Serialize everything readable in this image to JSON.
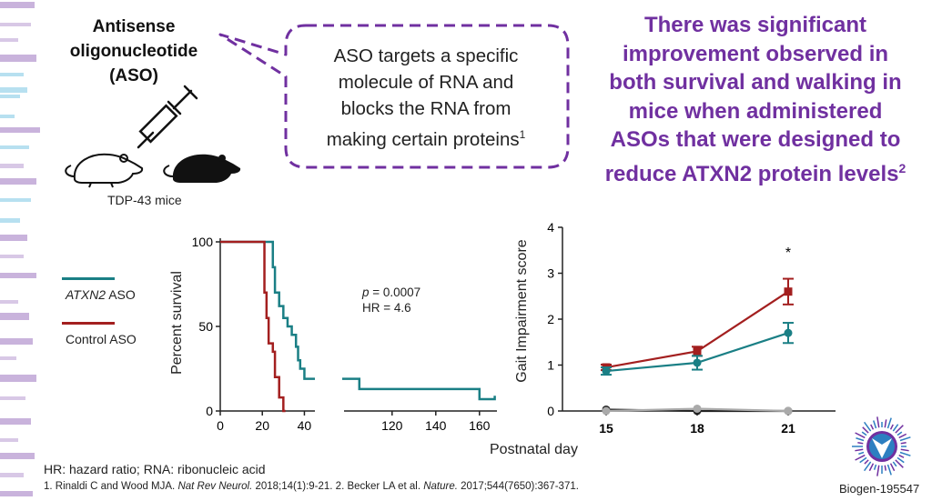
{
  "aso": {
    "title_line1": "Antisense",
    "title_line2": "oligonucleotide",
    "title_line3": "(ASO)",
    "mice_label": "TDP-43 mice"
  },
  "bubble": {
    "line1": "ASO targets a specific",
    "line2": "molecule of RNA and",
    "line3": "blocks the RNA from",
    "line4": "making certain proteins",
    "sup": "1"
  },
  "headline": {
    "line1": "There was significant",
    "line2": "improvement observed in",
    "line3": "both survival and walking in",
    "line4": "mice when administered",
    "line5": "ASOs that were designed to",
    "line6": "reduce ATXN2 protein levels",
    "sup": "2"
  },
  "legend": [
    {
      "label_em": "ATXN2",
      "label": " ASO",
      "color": "#1a7f85"
    },
    {
      "label_em": "",
      "label": "Control ASO",
      "color": "#a31f1f"
    }
  ],
  "stats": {
    "p_label": "p",
    "p_text": " = 0.0007",
    "hr_text": "HR = 4.6"
  },
  "shared_xlabel": "Postnatal day",
  "colors": {
    "accent": "#7030a0",
    "teal": "#1a7f85",
    "red": "#a31f1f",
    "bubble_border": "#7030a0"
  },
  "chart_data": [
    {
      "type": "line",
      "step": true,
      "ylabel": "Percent survival",
      "xlabel": "Postnatal day",
      "ylim": [
        0,
        100
      ],
      "yticks": [
        0,
        50,
        100
      ],
      "xticks_left": [
        0,
        20,
        40
      ],
      "xticks_right": [
        120,
        140,
        160
      ],
      "axis_break": true,
      "series": [
        {
          "name": "ATXN2 ASO",
          "color": "#1a7f85",
          "points": [
            [
              0,
              100
            ],
            [
              25,
              100
            ],
            [
              25,
              85
            ],
            [
              26,
              85
            ],
            [
              26,
              70
            ],
            [
              28,
              70
            ],
            [
              28,
              62
            ],
            [
              30,
              62
            ],
            [
              30,
              55
            ],
            [
              32,
              55
            ],
            [
              32,
              50
            ],
            [
              34,
              50
            ],
            [
              34,
              45
            ],
            [
              36,
              45
            ],
            [
              36,
              38
            ],
            [
              37,
              38
            ],
            [
              37,
              30
            ],
            [
              38,
              30
            ],
            [
              38,
              25
            ],
            [
              40,
              25
            ],
            [
              40,
              19
            ],
            [
              44,
              19
            ],
            [
              105,
              19
            ],
            [
              105,
              13
            ],
            [
              160,
              13
            ],
            [
              160,
              7
            ],
            [
              167,
              7
            ],
            [
              167,
              9
            ]
          ]
        },
        {
          "name": "Control ASO",
          "color": "#a31f1f",
          "points": [
            [
              0,
              100
            ],
            [
              21,
              100
            ],
            [
              21,
              70
            ],
            [
              22,
              70
            ],
            [
              22,
              55
            ],
            [
              23,
              55
            ],
            [
              23,
              40
            ],
            [
              25,
              40
            ],
            [
              25,
              35
            ],
            [
              26,
              35
            ],
            [
              26,
              20
            ],
            [
              28,
              20
            ],
            [
              28,
              8
            ],
            [
              30,
              8
            ],
            [
              30,
              0
            ],
            [
              31,
              0
            ]
          ]
        }
      ]
    },
    {
      "type": "line",
      "ylabel": "Gait Impairment score",
      "xlabel": "Postnatal day",
      "categories": [
        "15",
        "18",
        "21"
      ],
      "ylim": [
        0,
        4
      ],
      "yticks": [
        0,
        1,
        2,
        3,
        4
      ],
      "annotation": "*",
      "series": [
        {
          "name": "Control ASO",
          "color": "#a31f1f",
          "values": [
            0.95,
            1.3,
            2.6
          ],
          "errors": [
            0.06,
            0.1,
            0.28
          ]
        },
        {
          "name": "ATXN2 ASO",
          "color": "#1a7f85",
          "values": [
            0.87,
            1.05,
            1.7
          ],
          "errors": [
            0.08,
            0.15,
            0.22
          ]
        },
        {
          "color": "#222222",
          "values": [
            0.03,
            0.0,
            0.0
          ],
          "errors": [
            0,
            0,
            0
          ]
        },
        {
          "color": "#aaaaaa",
          "values": [
            0.0,
            0.05,
            0.0
          ],
          "errors": [
            0,
            0,
            0
          ]
        }
      ]
    }
  ],
  "footnotes": {
    "abbrev": "HR: hazard ratio; RNA: ribonucleic acid",
    "ref1_a": "1. Rinaldi C and Wood MJA. ",
    "ref1_em": "Nat Rev Neurol.",
    "ref1_b": " 2018;14(1):9-21. 2. Becker LA et al. ",
    "ref2_em": "Nature.",
    "ref2_b": " 2017;544(7650):367-371."
  },
  "doc_id": "Biogen-195547"
}
